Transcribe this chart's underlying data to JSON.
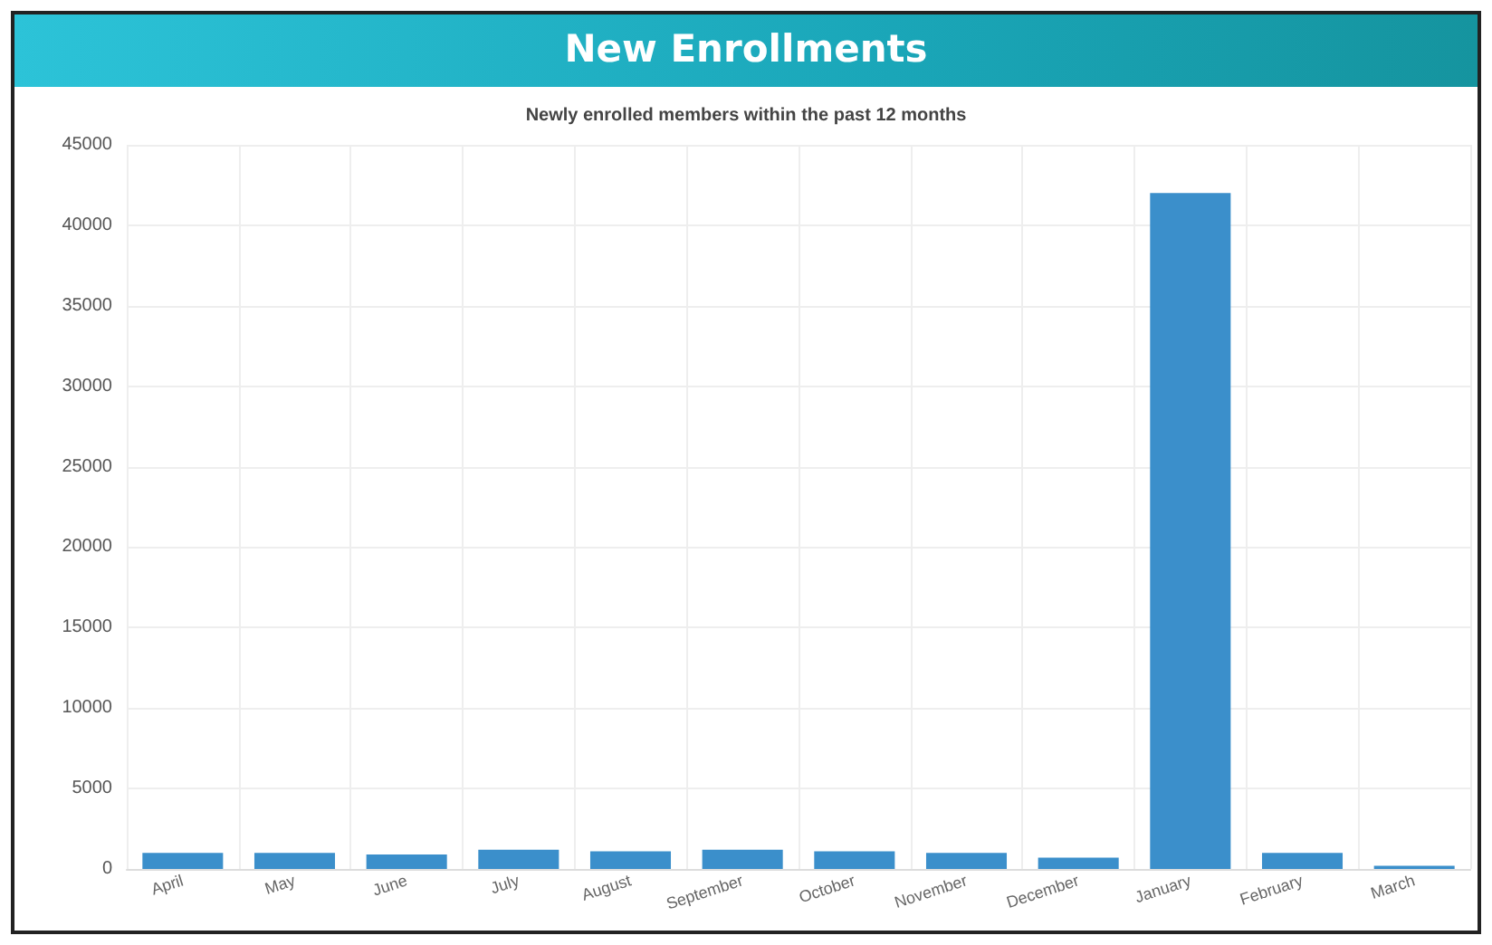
{
  "chart_data": {
    "type": "bar",
    "title": "New Enrollments",
    "subtitle": "Newly enrolled members within the past 12 months",
    "categories": [
      "April",
      "May",
      "June",
      "July",
      "August",
      "September",
      "October",
      "November",
      "December",
      "January",
      "February",
      "March"
    ],
    "values": [
      1000,
      1000,
      900,
      1200,
      1100,
      1200,
      1100,
      1000,
      700,
      42000,
      1000,
      200
    ],
    "color": "#3b8fcb",
    "ylim": [
      0,
      45000
    ],
    "yticks": [
      0,
      5000,
      10000,
      15000,
      20000,
      25000,
      30000,
      35000,
      40000,
      45000
    ],
    "grid": true
  }
}
